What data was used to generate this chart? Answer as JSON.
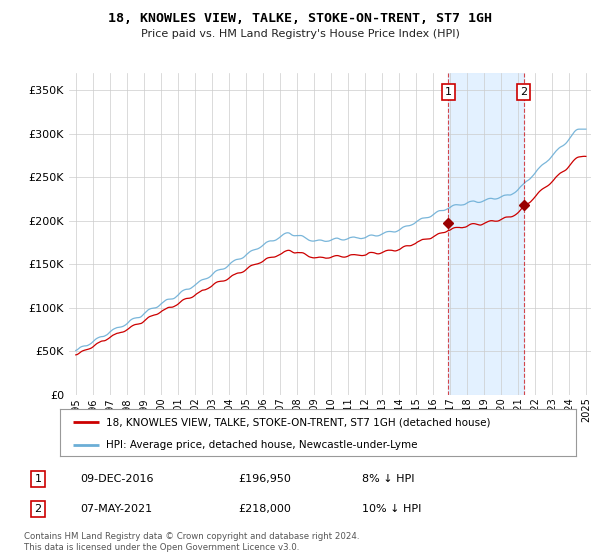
{
  "title": "18, KNOWLES VIEW, TALKE, STOKE-ON-TRENT, ST7 1GH",
  "subtitle": "Price paid vs. HM Land Registry's House Price Index (HPI)",
  "legend_line1": "18, KNOWLES VIEW, TALKE, STOKE-ON-TRENT, ST7 1GH (detached house)",
  "legend_line2": "HPI: Average price, detached house, Newcastle-under-Lyme",
  "annotation1_label": "1",
  "annotation1_date": "09-DEC-2016",
  "annotation1_price": "£196,950",
  "annotation1_hpi": "8% ↓ HPI",
  "annotation2_label": "2",
  "annotation2_date": "07-MAY-2021",
  "annotation2_price": "£218,000",
  "annotation2_hpi": "10% ↓ HPI",
  "footnote": "Contains HM Land Registry data © Crown copyright and database right 2024.\nThis data is licensed under the Open Government Licence v3.0.",
  "hpi_color": "#6baed6",
  "sold_color": "#cc0000",
  "shade_color": "#ddeeff",
  "ylim": [
    0,
    370000
  ],
  "yticks": [
    0,
    50000,
    100000,
    150000,
    200000,
    250000,
    300000,
    350000
  ],
  "start_year": 1995,
  "end_year": 2025,
  "sale1_t": 2016.917,
  "sale1_v": 196950,
  "sale2_t": 2021.333,
  "sale2_v": 218000
}
